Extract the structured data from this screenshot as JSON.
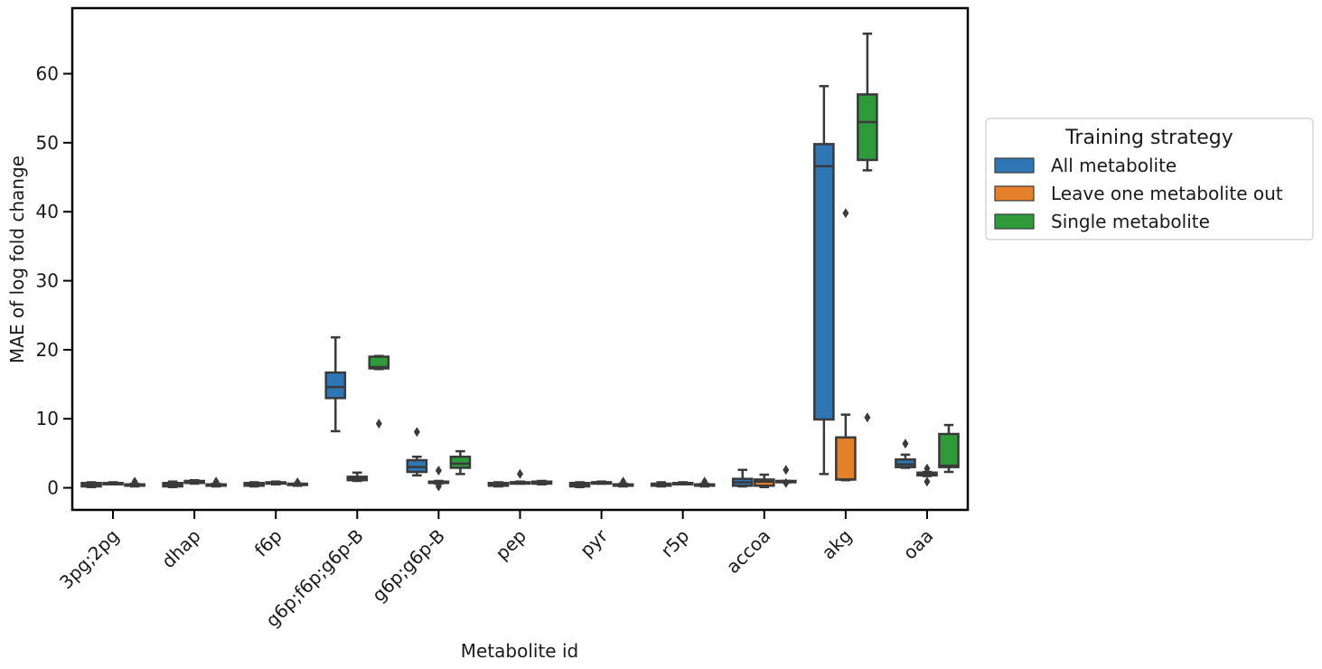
{
  "chart_data": {
    "type": "boxplot",
    "title": "",
    "xlabel": "Metabolite id",
    "ylabel": "MAE of log fold change",
    "ylim": [
      -3.2,
      69.5
    ],
    "yticks": [
      0,
      10,
      20,
      30,
      40,
      50,
      60
    ],
    "grid": false,
    "legend": {
      "title": "Training strategy",
      "placement": "outside-right"
    },
    "categories": [
      "3pg;2pg",
      "dhap",
      "f6p",
      "g6p;f6p;g6p-B",
      "g6p;g6p-B",
      "pep",
      "pyr",
      "r5p",
      "accoa",
      "akg",
      "oaa"
    ],
    "series": [
      {
        "name": "All metabolite",
        "color": "#2e77b4",
        "boxes": [
          {
            "min": 0.1,
            "q1": 0.2,
            "median": 0.5,
            "q3": 0.7,
            "max": 0.8,
            "outliers": []
          },
          {
            "min": 0.1,
            "q1": 0.2,
            "median": 0.5,
            "q3": 0.7,
            "max": 0.9,
            "outliers": []
          },
          {
            "min": 0.2,
            "q1": 0.3,
            "median": 0.5,
            "q3": 0.7,
            "max": 0.8,
            "outliers": []
          },
          {
            "min": 8.2,
            "q1": 13.0,
            "median": 14.6,
            "q3": 16.7,
            "max": 21.8,
            "outliers": []
          },
          {
            "min": 1.8,
            "q1": 2.3,
            "median": 3.0,
            "q3": 4.0,
            "max": 4.5,
            "outliers": [
              8.1
            ]
          },
          {
            "min": 0.2,
            "q1": 0.3,
            "median": 0.5,
            "q3": 0.7,
            "max": 0.8,
            "outliers": []
          },
          {
            "min": 0.1,
            "q1": 0.2,
            "median": 0.5,
            "q3": 0.7,
            "max": 0.8,
            "outliers": []
          },
          {
            "min": 0.2,
            "q1": 0.3,
            "median": 0.5,
            "q3": 0.6,
            "max": 0.8,
            "outliers": []
          },
          {
            "min": 0.2,
            "q1": 0.3,
            "median": 0.8,
            "q3": 1.3,
            "max": 2.6,
            "outliers": []
          },
          {
            "min": 2.0,
            "q1": 9.9,
            "median": 46.6,
            "q3": 49.8,
            "max": 58.2,
            "outliers": []
          },
          {
            "min": 2.9,
            "q1": 3.0,
            "median": 3.4,
            "q3": 4.1,
            "max": 4.8,
            "outliers": [
              6.4
            ]
          }
        ]
      },
      {
        "name": "Leave one metabolite out",
        "color": "#e5802a",
        "boxes": [
          {
            "min": 0.6,
            "q1": 0.6,
            "median": 0.7,
            "q3": 0.7,
            "max": 0.8,
            "outliers": []
          },
          {
            "min": 0.6,
            "q1": 0.7,
            "median": 0.8,
            "q3": 1.0,
            "max": 1.1,
            "outliers": []
          },
          {
            "min": 0.5,
            "q1": 0.6,
            "median": 0.7,
            "q3": 0.8,
            "max": 0.9,
            "outliers": []
          },
          {
            "min": 1.0,
            "q1": 1.1,
            "median": 1.3,
            "q3": 1.6,
            "max": 2.2,
            "outliers": []
          },
          {
            "min": 0.6,
            "q1": 0.7,
            "median": 0.8,
            "q3": 0.9,
            "max": 1.0,
            "outliers": [
              2.5,
              0.2
            ]
          },
          {
            "min": 0.6,
            "q1": 0.7,
            "median": 0.8,
            "q3": 0.8,
            "max": 0.9,
            "outliers": [
              2.0
            ]
          },
          {
            "min": 0.6,
            "q1": 0.7,
            "median": 0.8,
            "q3": 0.8,
            "max": 0.9,
            "outliers": []
          },
          {
            "min": 0.5,
            "q1": 0.6,
            "median": 0.7,
            "q3": 0.7,
            "max": 0.8,
            "outliers": []
          },
          {
            "min": 0.1,
            "q1": 0.3,
            "median": 0.9,
            "q3": 1.2,
            "max": 1.9,
            "outliers": []
          },
          {
            "min": 1.1,
            "q1": 1.2,
            "median": 1.2,
            "q3": 7.3,
            "max": 10.6,
            "outliers": [
              39.8
            ]
          },
          {
            "min": 1.7,
            "q1": 1.8,
            "median": 2.0,
            "q3": 2.2,
            "max": 2.3,
            "outliers": [
              2.8,
              0.9
            ]
          }
        ]
      },
      {
        "name": "Single metabolite",
        "color": "#2f9a3a",
        "boxes": [
          {
            "min": 0.2,
            "q1": 0.3,
            "median": 0.4,
            "q3": 0.5,
            "max": 0.6,
            "outliers": [
              0.9
            ]
          },
          {
            "min": 0.2,
            "q1": 0.3,
            "median": 0.4,
            "q3": 0.5,
            "max": 0.6,
            "outliers": [
              0.9
            ]
          },
          {
            "min": 0.3,
            "q1": 0.4,
            "median": 0.5,
            "q3": 0.6,
            "max": 0.6,
            "outliers": [
              0.8
            ]
          },
          {
            "min": 17.2,
            "q1": 17.3,
            "median": 17.5,
            "q3": 19.0,
            "max": 19.1,
            "outliers": [
              9.3
            ]
          },
          {
            "min": 2.0,
            "q1": 2.9,
            "median": 3.5,
            "q3": 4.5,
            "max": 5.3,
            "outliers": []
          },
          {
            "min": 0.5,
            "q1": 0.6,
            "median": 0.7,
            "q3": 0.9,
            "max": 1.0,
            "outliers": []
          },
          {
            "min": 0.2,
            "q1": 0.3,
            "median": 0.4,
            "q3": 0.5,
            "max": 0.6,
            "outliers": [
              0.9
            ]
          },
          {
            "min": 0.2,
            "q1": 0.3,
            "median": 0.4,
            "q3": 0.5,
            "max": 0.6,
            "outliers": [
              0.9
            ]
          },
          {
            "min": 0.8,
            "q1": 0.9,
            "median": 0.9,
            "q3": 1.0,
            "max": 1.0,
            "outliers": [
              2.6,
              0.7
            ]
          },
          {
            "min": 46.0,
            "q1": 47.5,
            "median": 53.0,
            "q3": 57.0,
            "max": 65.8,
            "outliers": [
              10.2
            ]
          },
          {
            "min": 2.3,
            "q1": 3.0,
            "median": 3.2,
            "q3": 7.8,
            "max": 9.1,
            "outliers": []
          }
        ]
      }
    ]
  }
}
